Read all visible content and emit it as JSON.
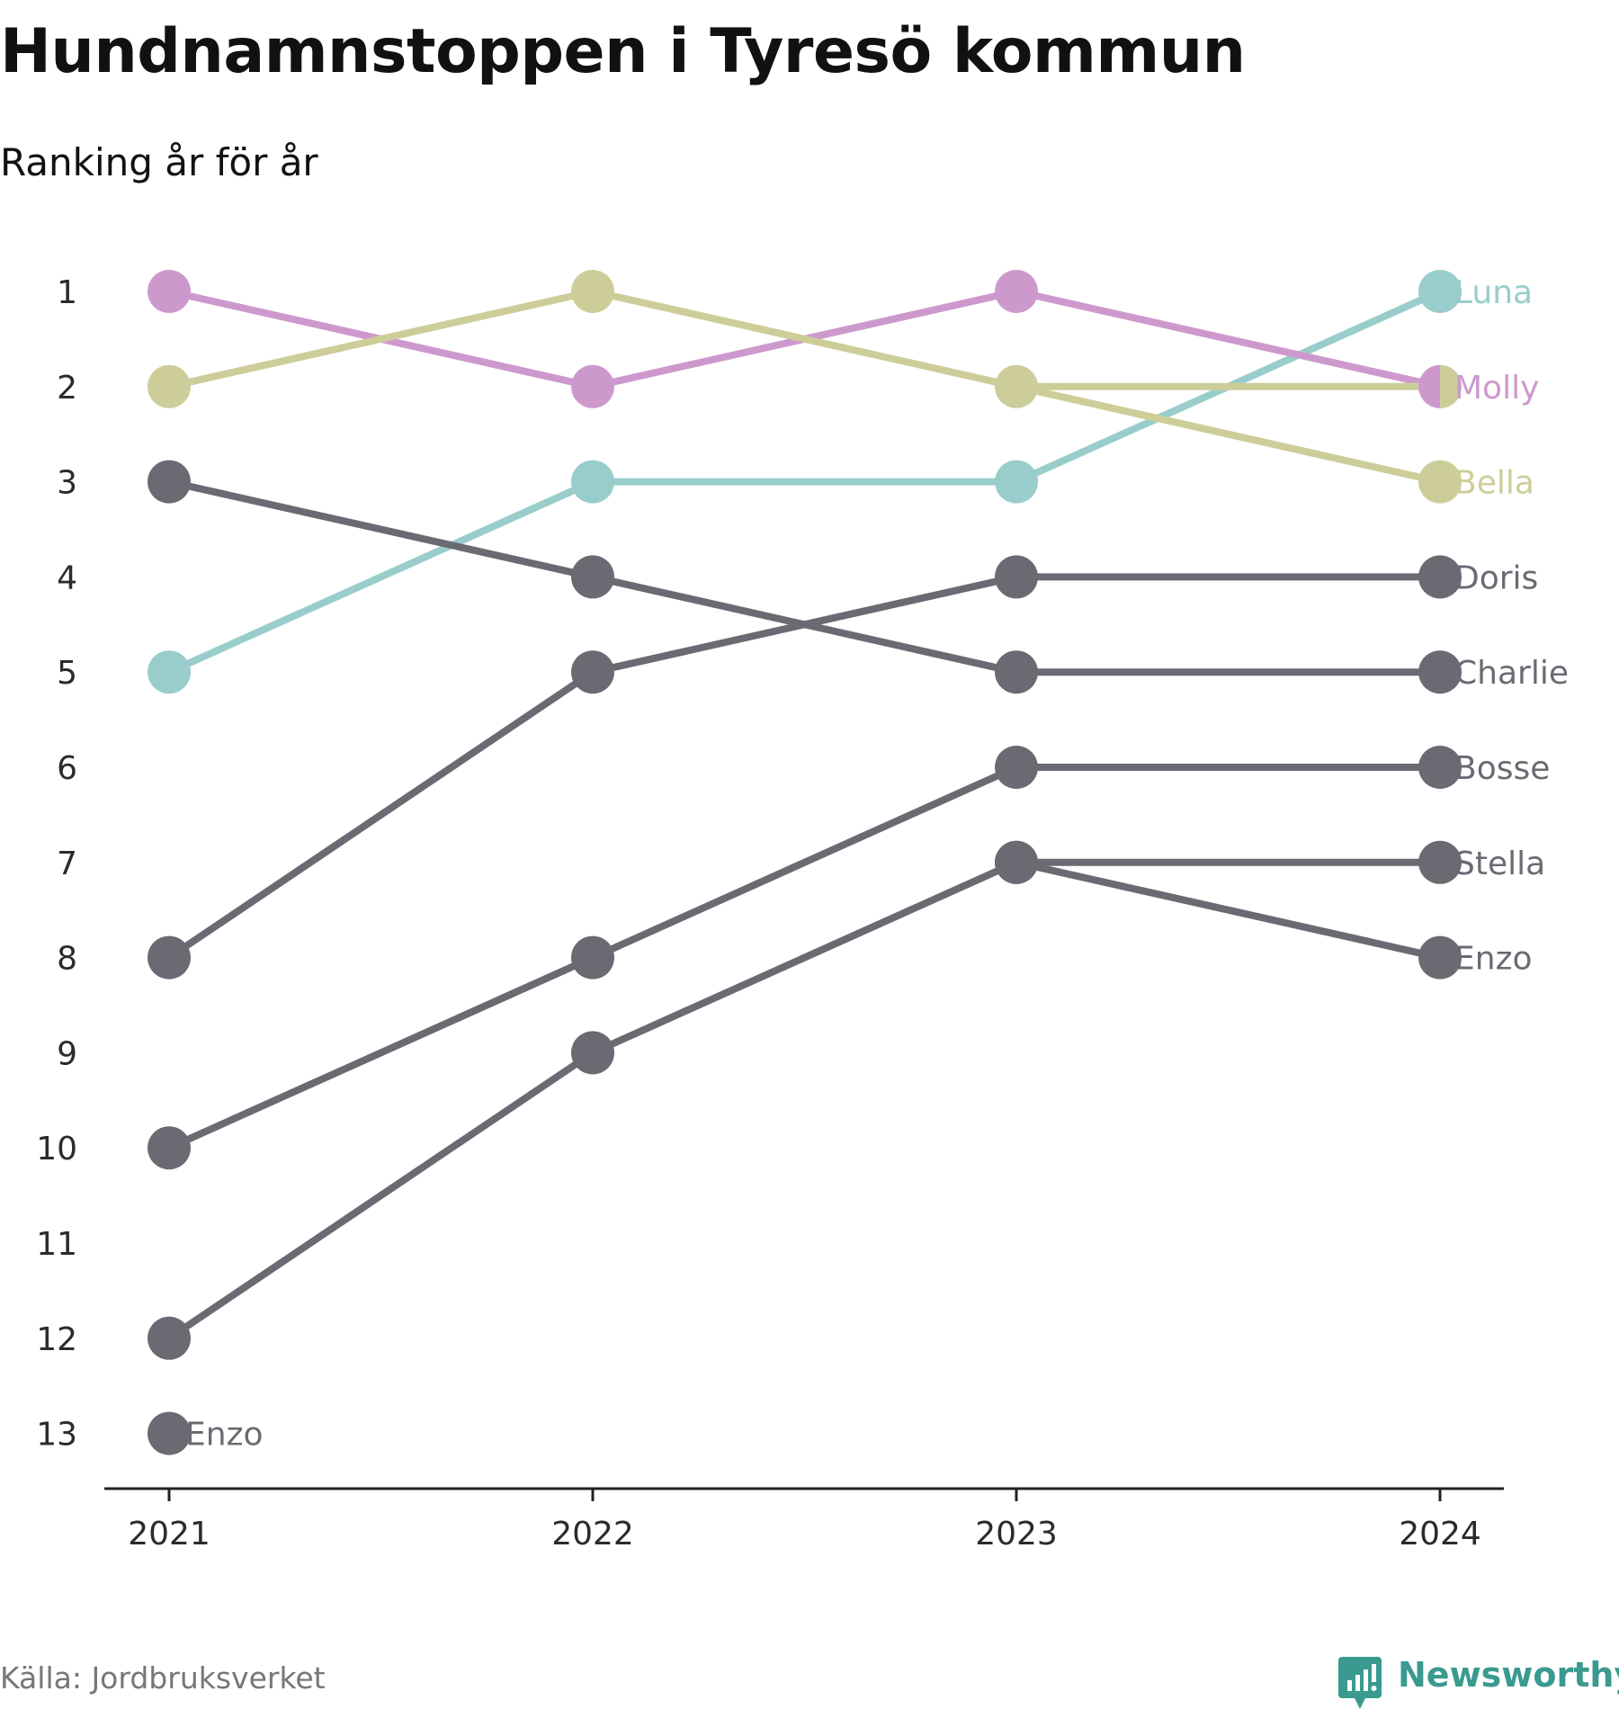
{
  "chart_data": {
    "type": "line",
    "subtype": "bump",
    "title": "Hundnamnstoppen i Tyresö kommun",
    "subtitle": "Ranking år för år",
    "x": [
      "2021",
      "2022",
      "2023",
      "2024"
    ],
    "y_ticks": [
      "1",
      "2",
      "3",
      "4",
      "5",
      "6",
      "7",
      "8",
      "9",
      "10",
      "11",
      "12",
      "13"
    ],
    "ylim": [
      13,
      1
    ],
    "y_inverted": true,
    "grid": false,
    "series": [
      {
        "name": "Enzo",
        "values": [
          13,
          null,
          null,
          null
        ],
        "color": "#6b6a73",
        "label_side": "start"
      },
      {
        "name": "Luna",
        "values": [
          5,
          3,
          3,
          1
        ],
        "color": "#99cdcb",
        "label_side": "end"
      },
      {
        "name": "Molly",
        "values": [
          1,
          2,
          1,
          2
        ],
        "color": "#cd99cd",
        "label_side": "end"
      },
      {
        "name": "Bella",
        "values": [
          2,
          1,
          2,
          3
        ],
        "color": "#cdcd99",
        "label_side": "end"
      },
      {
        "name": "Doris",
        "values": [
          8,
          5,
          4,
          4
        ],
        "color": "#6b6a73",
        "label_side": "end"
      },
      {
        "name": "Charlie",
        "values": [
          3,
          4,
          5,
          5
        ],
        "color": "#6b6a73",
        "label_side": "end"
      },
      {
        "name": "Bosse",
        "values": [
          10,
          8,
          6,
          6
        ],
        "color": "#6b6a73",
        "label_side": "end"
      },
      {
        "name": "Stella",
        "values": [
          12,
          9,
          7,
          7
        ],
        "color": "#6b6a73",
        "label_side": "end"
      },
      {
        "name": "Enzo",
        "values": [
          null,
          null,
          7,
          8
        ],
        "color": "#6b6a73",
        "label_side": "end"
      }
    ]
  },
  "footer": {
    "source": "Källa: Jordbruksverket",
    "brand": "Newsworthy"
  },
  "colors": {
    "axis": "#222222",
    "label_text": "#2b2b2b",
    "brand": "#3a9a8f"
  }
}
